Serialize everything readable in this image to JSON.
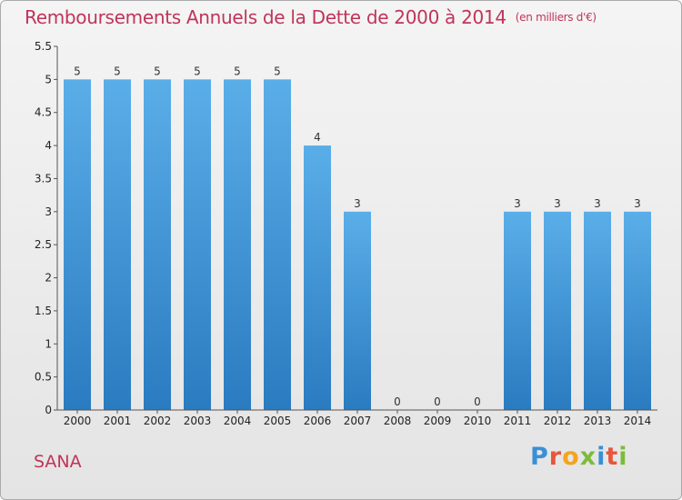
{
  "title": "Remboursements Annuels de la Dette de 2000 à 2014",
  "subtitle": "(en milliers d'€)",
  "commune": "SANA",
  "logo": {
    "text": "Proxiti",
    "letter_colors": [
      "#3a8fd6",
      "#e8543c",
      "#f2a51f",
      "#7dbb3c",
      "#3a8fd6",
      "#e8543c",
      "#7dbb3c"
    ]
  },
  "colors": {
    "bar_top": "#5aaee8",
    "bar_bottom": "#2a7bc0",
    "title": "#c0345a"
  },
  "chart_data": {
    "type": "bar",
    "categories": [
      "2000",
      "2001",
      "2002",
      "2003",
      "2004",
      "2005",
      "2006",
      "2007",
      "2008",
      "2009",
      "2010",
      "2011",
      "2012",
      "2013",
      "2014"
    ],
    "values": [
      5,
      5,
      5,
      5,
      5,
      5,
      4,
      3,
      0,
      0,
      0,
      3,
      3,
      3,
      3
    ],
    "ylim": [
      0,
      5.5
    ],
    "yticks": [
      "0",
      "0.5",
      "1",
      "1.5",
      "2",
      "2.5",
      "3",
      "3.5",
      "4",
      "4.5",
      "5",
      "5.5"
    ],
    "grid": false,
    "legend": "none"
  }
}
